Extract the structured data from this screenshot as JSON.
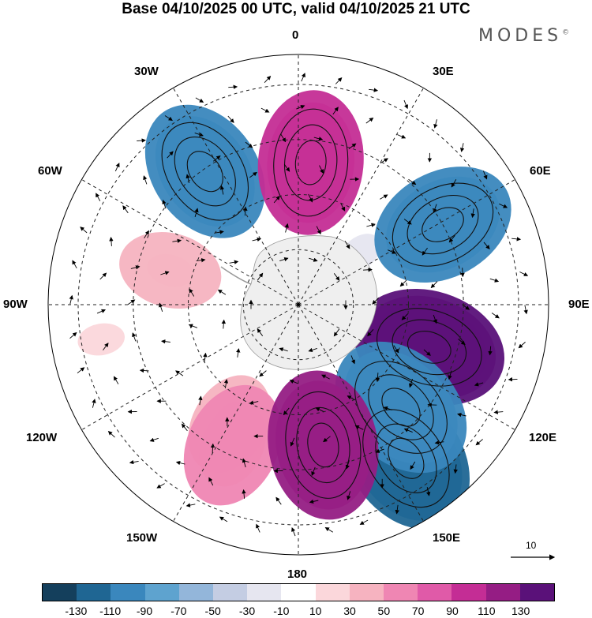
{
  "title": "Base 04/10/2025 00 UTC, valid 04/10/2025 21 UTC",
  "brand": "MODES",
  "brand_mark": "©",
  "longitude_labels": {
    "lon_0": "0",
    "lon_30e": "30E",
    "lon_60e": "60E",
    "lon_90e": "90E",
    "lon_120e": "120E",
    "lon_150e": "150E",
    "lon_180": "180",
    "lon_150w": "150W",
    "lon_120w": "120W",
    "lon_90w": "90W",
    "lon_60w": "60W",
    "lon_30w": "30W"
  },
  "vector_scale": {
    "label": "10",
    "icon": "arrow-right-icon"
  },
  "colorbar": {
    "colors": [
      "#143f5c",
      "#1f6693",
      "#3a87bd",
      "#5ea3cf",
      "#93b6da",
      "#c4cde3",
      "#e6e6f0",
      "#ffffff",
      "#fbd7db",
      "#f6b3c0",
      "#ef86b3",
      "#e05aa8",
      "#c42d95",
      "#951d84",
      "#5a1179"
    ],
    "labels": [
      "-130",
      "-110",
      "-90",
      "-70",
      "-50",
      "-30",
      "-10",
      "10",
      "30",
      "50",
      "70",
      "90",
      "110",
      "130"
    ]
  },
  "map_data": {
    "projection": "south polar stereographic",
    "anomalies": [
      {
        "name": "anomaly-center-lon-170e",
        "lon_deg": 170,
        "colat_frac": 0.57,
        "value": 110
      },
      {
        "name": "anomaly-center-lon-135e",
        "lon_deg": 135,
        "colat_frac": 0.58,
        "value": -110
      },
      {
        "name": "anomaly-center-lon-145e",
        "lon_deg": 145,
        "colat_frac": 0.75,
        "value": -130
      },
      {
        "name": "anomaly-center-lon-108e",
        "lon_deg": 108,
        "colat_frac": 0.55,
        "value": 130
      },
      {
        "name": "anomaly-center-lon-61e",
        "lon_deg": 61,
        "colat_frac": 0.66,
        "value": -100
      },
      {
        "name": "anomaly-center-lon-5e",
        "lon_deg": 5,
        "colat_frac": 0.57,
        "value": 90
      },
      {
        "name": "anomaly-center-lon-35w",
        "lon_deg": -35,
        "colat_frac": 0.65,
        "value": -100
      },
      {
        "name": "anomaly-center-lon-75w",
        "lon_deg": -75,
        "colat_frac": 0.53,
        "value": 30
      },
      {
        "name": "anomaly-center-lon-100w",
        "lon_deg": -100,
        "colat_frac": 0.8,
        "value": 20
      },
      {
        "name": "anomaly-center-lon-155w",
        "lon_deg": -155,
        "colat_frac": 0.62,
        "value": 50
      },
      {
        "name": "anomaly-center-lon-150w",
        "lon_deg": -150,
        "colat_frac": 0.55,
        "value": 40
      },
      {
        "name": "anomaly-center-lon-50e",
        "lon_deg": 50,
        "colat_frac": 0.32,
        "value": -20
      }
    ]
  }
}
